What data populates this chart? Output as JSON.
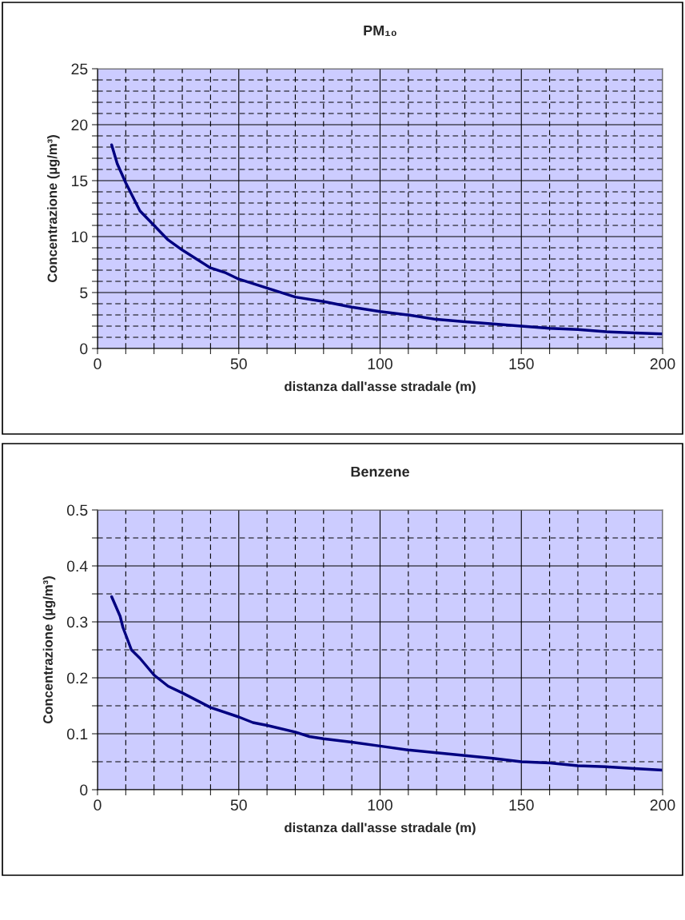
{
  "chart_data": [
    {
      "type": "line",
      "title": "PM₁₀",
      "xlabel": "distanza dall'asse stradale (m)",
      "ylabel": "Concentrazione (µg/m³)",
      "series": [
        {
          "color": "#000080",
          "x": [
            5,
            7,
            10,
            15,
            20,
            25,
            30,
            35,
            40,
            45,
            50,
            60,
            70,
            80,
            90,
            100,
            110,
            120,
            130,
            140,
            150,
            160,
            170,
            180,
            190,
            200
          ],
          "values": [
            18.2,
            16.5,
            14.8,
            12.3,
            11.0,
            9.7,
            8.8,
            8.0,
            7.2,
            6.8,
            6.2,
            5.4,
            4.6,
            4.2,
            3.7,
            3.3,
            3.0,
            2.6,
            2.4,
            2.2,
            2.0,
            1.8,
            1.7,
            1.5,
            1.4,
            1.3
          ]
        }
      ],
      "xlim": [
        0,
        200
      ],
      "ylim": [
        0,
        25
      ],
      "xticks": [
        0,
        {
          "value": 10,
          "label": null
        },
        {
          "value": 20,
          "label": null
        },
        {
          "value": 30,
          "label": null
        },
        {
          "value": 40,
          "label": null
        },
        50,
        {
          "value": 60,
          "label": null
        },
        {
          "value": 70,
          "label": null
        },
        {
          "value": 80,
          "label": null
        },
        {
          "value": 90,
          "label": null
        },
        100,
        {
          "value": 110,
          "label": null
        },
        {
          "value": 120,
          "label": null
        },
        {
          "value": 130,
          "label": null
        },
        {
          "value": 140,
          "label": null
        },
        150,
        {
          "value": 160,
          "label": null
        },
        {
          "value": 170,
          "label": null
        },
        {
          "value": 180,
          "label": null
        },
        {
          "value": 190,
          "label": null
        },
        200
      ],
      "yticks": [
        0,
        {
          "value": 1,
          "label": null
        },
        {
          "value": 2,
          "label": null
        },
        {
          "value": 3,
          "label": null
        },
        {
          "value": 4,
          "label": null
        },
        5,
        {
          "value": 6,
          "label": null
        },
        {
          "value": 7,
          "label": null
        },
        {
          "value": 8,
          "label": null
        },
        {
          "value": 9,
          "label": null
        },
        10,
        {
          "value": 11,
          "label": null
        },
        {
          "value": 12,
          "label": null
        },
        {
          "value": 13,
          "label": null
        },
        {
          "value": 14,
          "label": null
        },
        15,
        {
          "value": 16,
          "label": null
        },
        {
          "value": 17,
          "label": null
        },
        {
          "value": 18,
          "label": null
        },
        {
          "value": 19,
          "label": null
        },
        20,
        {
          "value": 21,
          "label": null
        },
        {
          "value": 22,
          "label": null
        },
        {
          "value": 23,
          "label": null
        },
        {
          "value": 24,
          "label": null
        },
        25
      ],
      "grid": true,
      "legend": false,
      "marker": "none",
      "line_style": "solid"
    },
    {
      "type": "line",
      "title": "Benzene",
      "xlabel": "distanza dall'asse stradale (m)",
      "ylabel": "Concentrazione (µg/m³)",
      "series": [
        {
          "color": "#000080",
          "x": [
            5,
            8,
            9,
            12,
            15,
            20,
            25,
            30,
            40,
            50,
            55,
            60,
            70,
            75,
            80,
            90,
            100,
            110,
            120,
            130,
            140,
            150,
            160,
            170,
            180,
            190,
            200
          ],
          "values": [
            0.345,
            0.31,
            0.29,
            0.25,
            0.235,
            0.205,
            0.185,
            0.173,
            0.147,
            0.13,
            0.12,
            0.115,
            0.103,
            0.095,
            0.091,
            0.085,
            0.078,
            0.071,
            0.066,
            0.061,
            0.056,
            0.05,
            0.048,
            0.043,
            0.041,
            0.038,
            0.035
          ]
        }
      ],
      "xlim": [
        0,
        200
      ],
      "ylim": [
        0,
        0.5
      ],
      "xticks": [
        0,
        {
          "value": 10,
          "label": null
        },
        {
          "value": 20,
          "label": null
        },
        {
          "value": 30,
          "label": null
        },
        {
          "value": 40,
          "label": null
        },
        50,
        {
          "value": 60,
          "label": null
        },
        {
          "value": 70,
          "label": null
        },
        {
          "value": 80,
          "label": null
        },
        {
          "value": 90,
          "label": null
        },
        100,
        {
          "value": 110,
          "label": null
        },
        {
          "value": 120,
          "label": null
        },
        {
          "value": 130,
          "label": null
        },
        {
          "value": 140,
          "label": null
        },
        150,
        {
          "value": 160,
          "label": null
        },
        {
          "value": 170,
          "label": null
        },
        {
          "value": 180,
          "label": null
        },
        {
          "value": 190,
          "label": null
        },
        200
      ],
      "yticks": [
        0,
        {
          "value": 0.05,
          "label": null
        },
        0.1,
        {
          "value": 0.15,
          "label": null
        },
        0.2,
        {
          "value": 0.25,
          "label": null
        },
        0.3,
        {
          "value": 0.35,
          "label": null
        },
        0.4,
        {
          "value": 0.45,
          "label": null
        },
        0.5
      ],
      "grid": true,
      "legend": false,
      "marker": "none",
      "line_style": "solid"
    }
  ]
}
